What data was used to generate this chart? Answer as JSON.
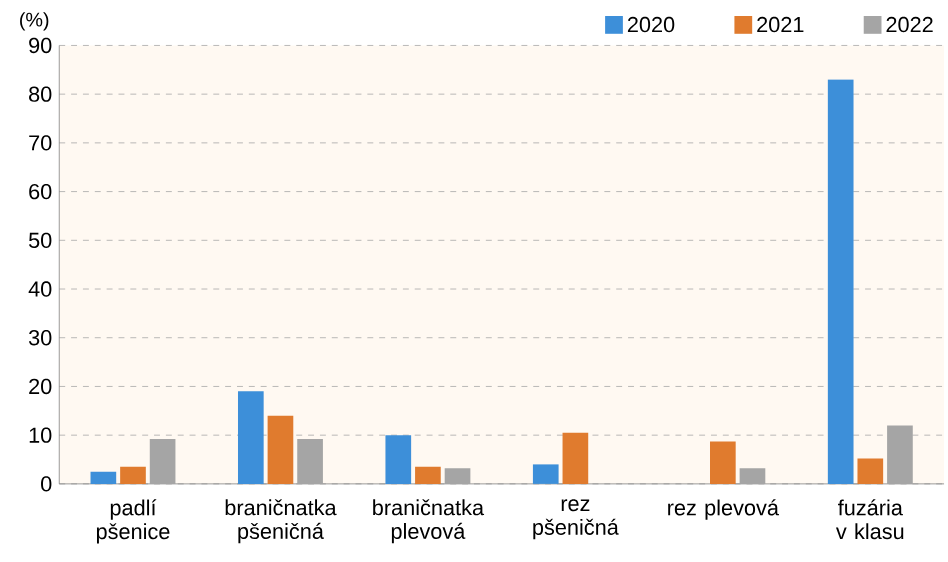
{
  "chart_data": {
    "type": "bar",
    "ylabel": "(%)",
    "categories": [
      "padlí pšenice",
      "braničnatka pšeničná",
      "braničnatka plevová",
      "rez pšeničná",
      "rez plevová",
      "fuzária v klasu"
    ],
    "series": [
      {
        "name": "2020",
        "color": "#3d8fd9",
        "values": [
          2.5,
          19,
          10,
          4,
          null,
          83
        ]
      },
      {
        "name": "2021",
        "color": "#e07b2e",
        "values": [
          3.5,
          14,
          3.5,
          10.5,
          8.7,
          5.2
        ]
      },
      {
        "name": "2022",
        "color": "#a5a5a5",
        "values": [
          9.2,
          9.2,
          3.2,
          null,
          3.2,
          12
        ]
      }
    ],
    "ylim": [
      0,
      90
    ],
    "yticks": [
      0,
      10,
      20,
      30,
      40,
      50,
      60,
      70,
      80,
      90
    ],
    "grid": "y",
    "legend": "top right"
  }
}
